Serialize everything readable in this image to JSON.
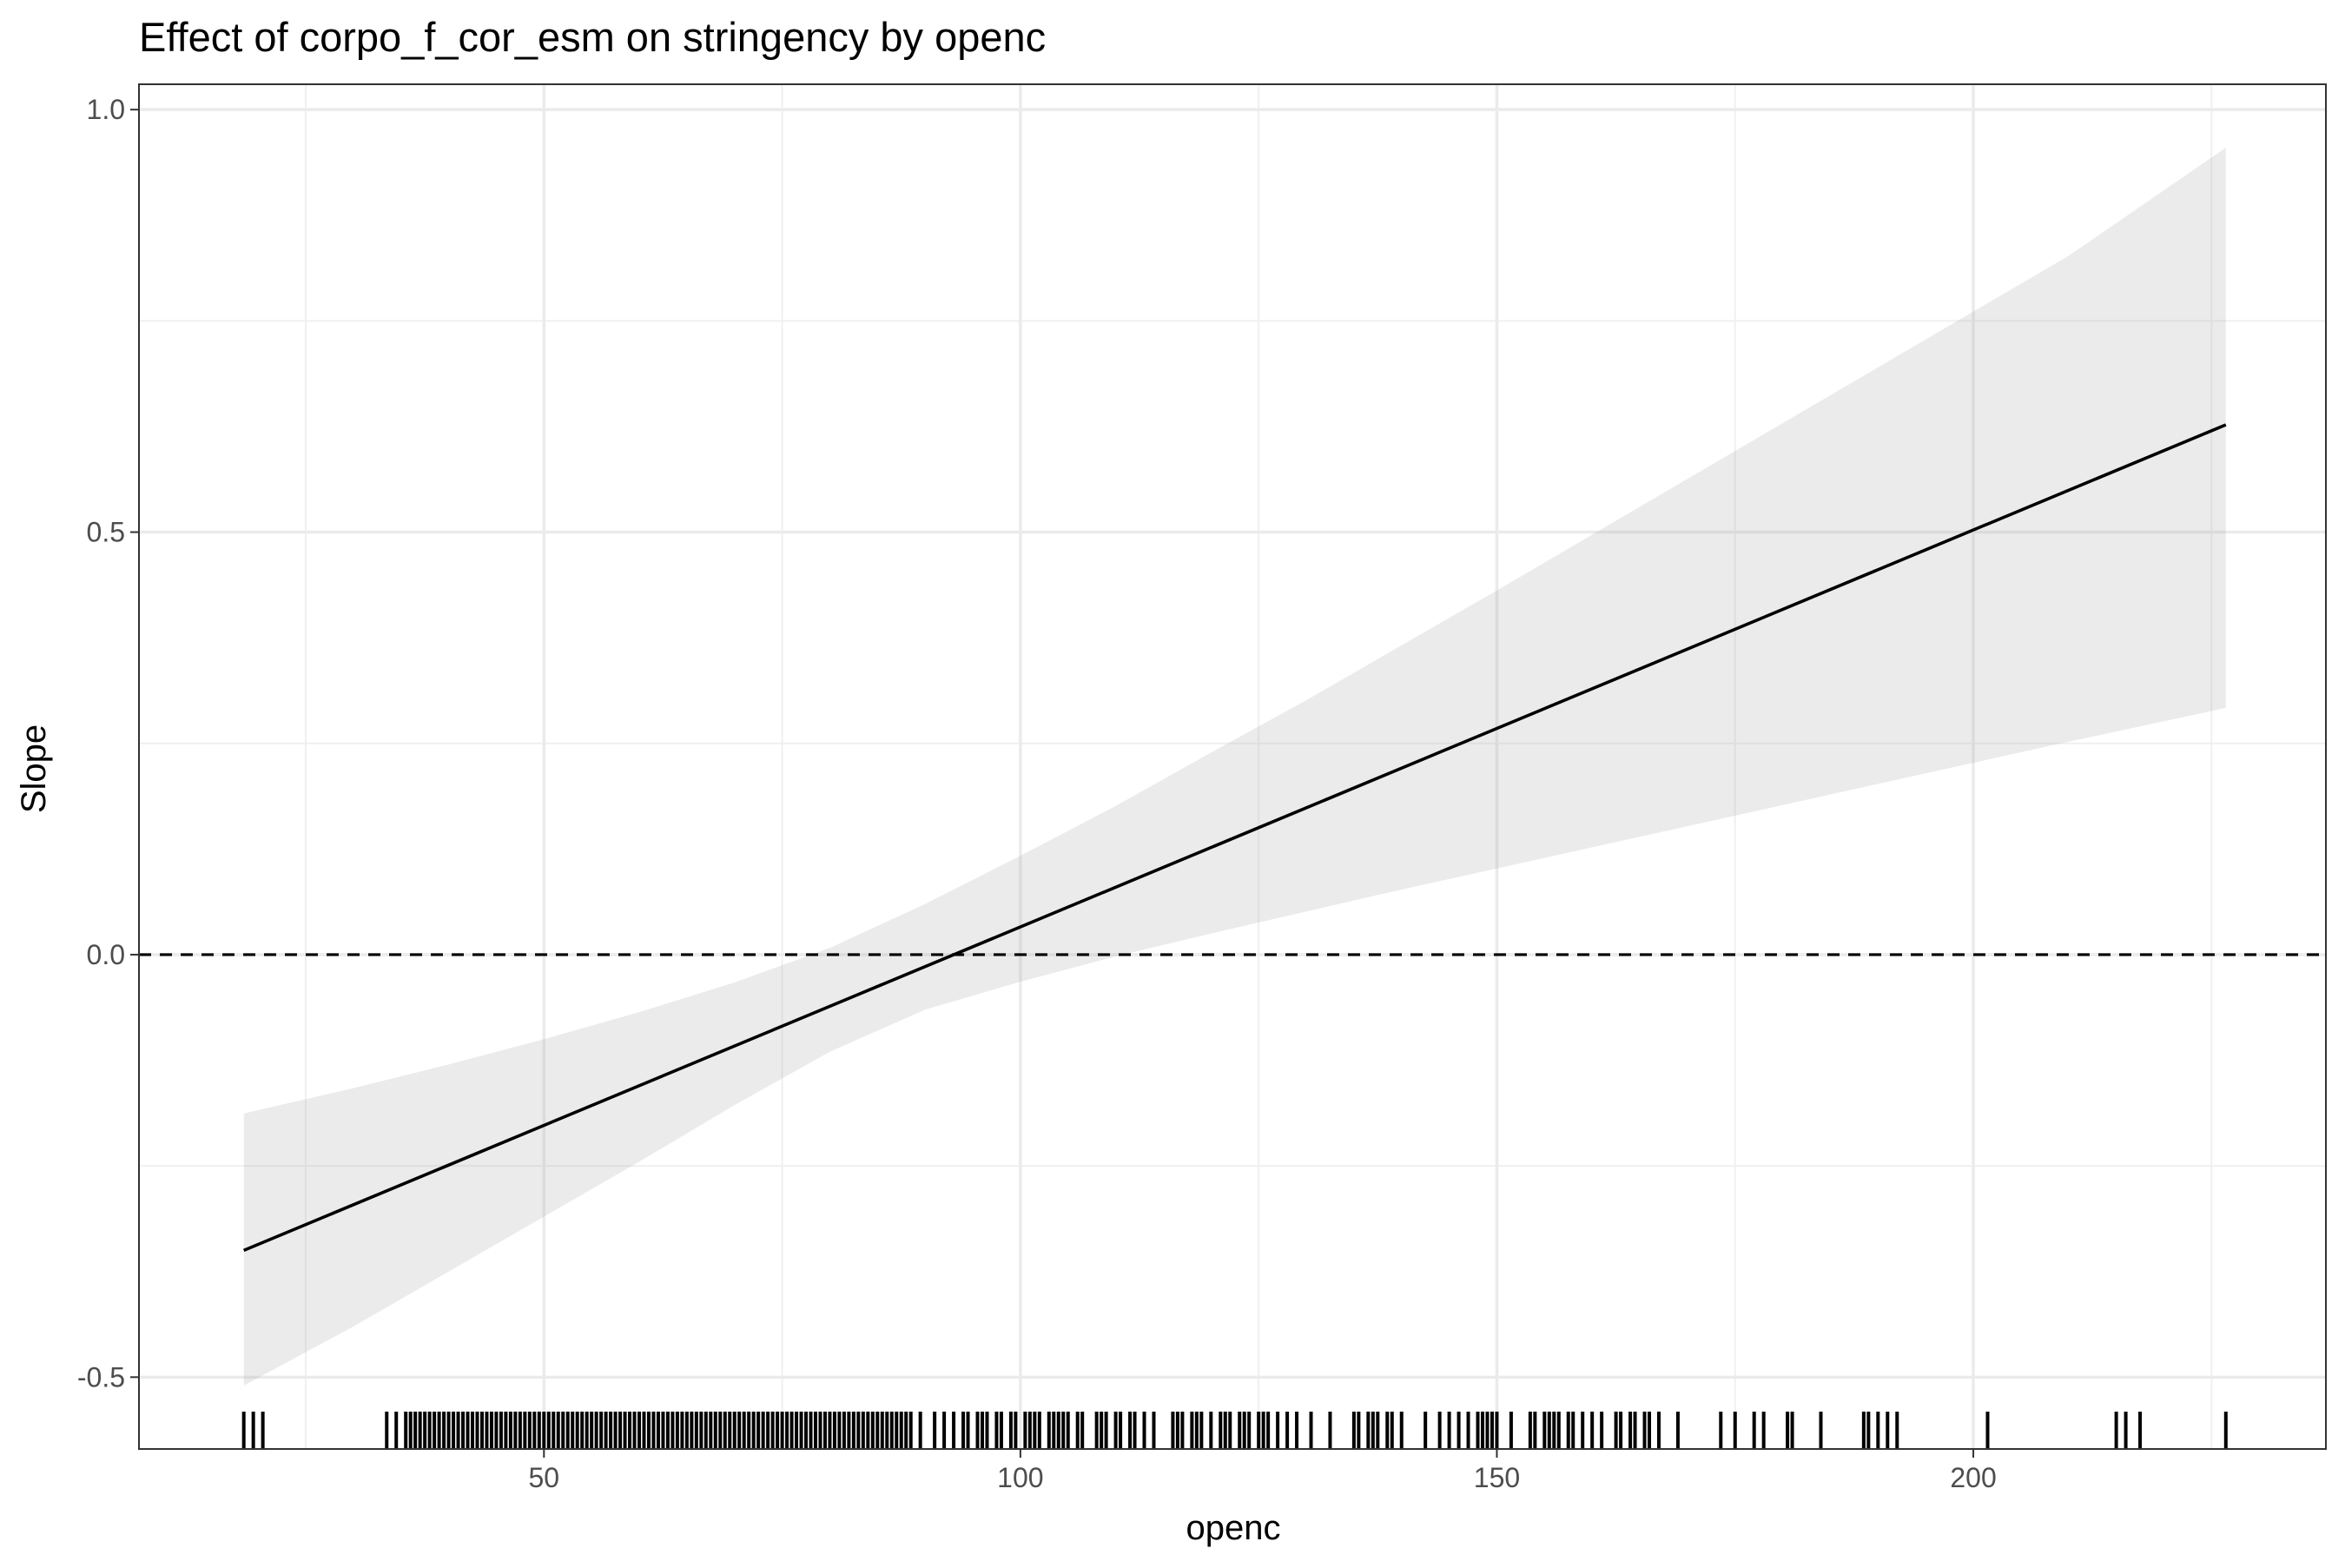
{
  "chart_data": {
    "type": "line",
    "title": "Effect of corpo_f_cor_esm on stringency by openc",
    "xlabel": "openc",
    "ylabel": "Slope",
    "xlim": [
      7.5,
      237
    ],
    "ylim": [
      -0.585,
      1.03
    ],
    "x_ticks": [
      50,
      100,
      150,
      200
    ],
    "x_tick_labels": [
      "50",
      "100",
      "150",
      "200"
    ],
    "y_ticks": [
      -0.5,
      0.0,
      0.5,
      1.0
    ],
    "y_tick_labels": [
      "-0.5",
      "0.0",
      "0.5",
      "1.0"
    ],
    "grid": true,
    "legend": "none",
    "reference_line": {
      "y": 0,
      "style": "dashed"
    },
    "series": [
      {
        "x": [
          18.5,
          226.5
        ],
        "y": [
          -0.35,
          0.627
        ]
      }
    ],
    "confidence_band": {
      "x": [
        18.5,
        30,
        40,
        50,
        60,
        70,
        80,
        90,
        100,
        110,
        120,
        130,
        140,
        150,
        160,
        170,
        180,
        190,
        200,
        210,
        226.5
      ],
      "lower": [
        -0.51,
        -0.44,
        -0.375,
        -0.31,
        -0.245,
        -0.178,
        -0.115,
        -0.065,
        -0.032,
        -0.002,
        0.025,
        0.051,
        0.077,
        0.102,
        0.127,
        0.152,
        0.177,
        0.202,
        0.227,
        0.252,
        0.292
      ],
      "upper": [
        -0.188,
        -0.158,
        -0.13,
        -0.1,
        -0.068,
        -0.033,
        0.008,
        0.06,
        0.117,
        0.176,
        0.239,
        0.301,
        0.366,
        0.431,
        0.497,
        0.563,
        0.629,
        0.695,
        0.761,
        0.827,
        0.955
      ]
    },
    "rug": [
      18.5,
      19.5,
      20.5,
      33.5,
      34.5,
      35.5,
      36,
      36.5,
      37,
      37.5,
      38,
      38.5,
      39,
      39.5,
      40,
      40.5,
      41,
      41.5,
      42,
      42.5,
      43,
      43.5,
      44,
      44.5,
      45,
      45.5,
      46,
      46.5,
      47,
      47.5,
      48,
      48.5,
      49,
      49.5,
      50,
      50.5,
      51,
      51.5,
      52,
      52.5,
      53,
      53.5,
      54,
      54.5,
      55,
      55.5,
      56,
      56.5,
      57,
      57.5,
      58,
      58.5,
      59,
      59.5,
      60,
      60.5,
      61,
      61.5,
      62,
      62.5,
      63,
      63.5,
      64,
      64.5,
      65,
      65.5,
      66,
      66.5,
      67,
      67.5,
      68,
      68.5,
      69,
      69.5,
      70,
      70.5,
      71,
      71.5,
      72,
      72.5,
      73,
      73.5,
      74,
      74.5,
      75,
      75.5,
      76,
      76.5,
      77,
      77.5,
      78,
      78.5,
      79,
      79.5,
      80,
      80.5,
      81,
      81.5,
      82,
      82.5,
      83,
      83.5,
      84,
      84.5,
      85,
      85.5,
      86,
      86.5,
      87,
      87.5,
      88,
      88.5,
      89.5,
      91,
      92,
      93,
      94,
      94.5,
      95.5,
      96,
      96.5,
      97.5,
      98,
      99,
      99.5,
      100.5,
      101,
      101.5,
      102,
      103,
      103.5,
      104,
      104.5,
      105,
      106,
      106.5,
      108,
      108.5,
      109,
      110,
      110.5,
      111.5,
      112,
      113,
      114,
      116,
      116.5,
      117,
      118,
      118.5,
      119,
      120,
      121,
      121.5,
      122,
      123,
      123.5,
      124,
      125,
      125.5,
      126,
      127,
      128,
      129,
      130.5,
      132.5,
      135,
      135.5,
      136.5,
      137,
      137.5,
      138.5,
      139,
      140,
      142.5,
      144,
      145,
      146,
      147,
      148,
      148.5,
      149,
      149.5,
      150,
      151.5,
      153.5,
      154,
      155,
      155.5,
      156,
      156.5,
      157.5,
      158,
      159,
      160,
      161,
      162.5,
      163,
      164,
      164.5,
      165.5,
      166,
      167,
      169,
      173.5,
      175,
      177,
      178,
      180.5,
      181,
      184,
      188.5,
      189,
      190,
      191,
      192,
      201.5,
      215,
      216,
      217.5,
      226.5
    ]
  }
}
